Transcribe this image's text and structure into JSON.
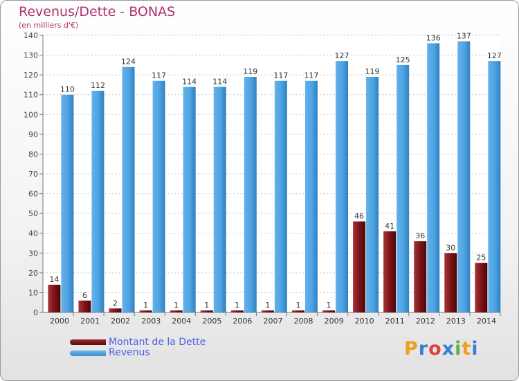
{
  "chart_data": {
    "type": "bar",
    "title": "Revenus/Dette - BONAS",
    "subtitle": "(en milliers d'€)",
    "categories": [
      "2000",
      "2001",
      "2002",
      "2003",
      "2004",
      "2005",
      "2006",
      "2007",
      "2008",
      "2009",
      "2010",
      "2011",
      "2012",
      "2013",
      "2014"
    ],
    "series": [
      {
        "name": "Montant de la Dette",
        "color": "#7a1418",
        "values": [
          14,
          6,
          2,
          1,
          1,
          1,
          1,
          1,
          1,
          1,
          46,
          41,
          36,
          30,
          25
        ]
      },
      {
        "name": "Revenus",
        "color": "#4ea3e0",
        "values": [
          110,
          112,
          124,
          117,
          114,
          114,
          119,
          117,
          117,
          127,
          119,
          125,
          136,
          137,
          127
        ]
      }
    ],
    "ylim": [
      0,
      140
    ],
    "yticks": [
      0,
      10,
      20,
      30,
      40,
      50,
      60,
      70,
      80,
      90,
      100,
      110,
      120,
      130,
      140
    ],
    "grid": true,
    "legend_position": "bottom-left"
  },
  "logo": {
    "text": "Proxiti",
    "colors": [
      "#f0a020",
      "#3a7fd0",
      "#e04040",
      "#3a7fd0",
      "#60b040",
      "#f0a020",
      "#3a7fd0"
    ]
  }
}
